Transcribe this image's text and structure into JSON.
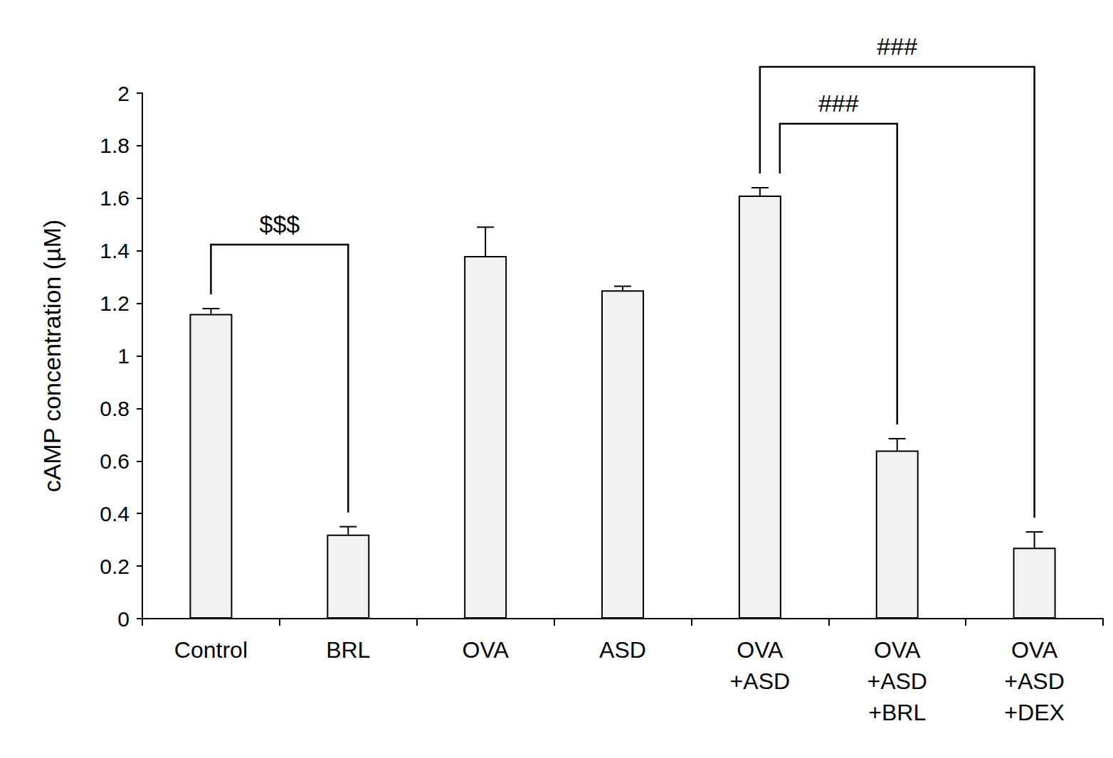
{
  "chart_data": {
    "type": "bar",
    "y_label": "cAMP concentration (µM)",
    "categories": [
      "Control",
      "BRL",
      "OVA",
      "ASD",
      "OVA\n+ASD",
      "OVA\n+ASD\n+BRL",
      "OVA\n+ASD\n+DEX"
    ],
    "values": [
      1.16,
      0.32,
      1.38,
      1.25,
      1.61,
      0.64,
      0.27
    ],
    "errors": [
      0.02,
      0.03,
      0.11,
      0.015,
      0.03,
      0.045,
      0.06
    ],
    "color": "#f2f2f2",
    "ylim": [
      0,
      2
    ],
    "yticks": [
      0,
      0.2,
      0.4,
      0.6,
      0.8,
      1,
      1.2,
      1.4,
      1.6,
      1.8,
      2
    ],
    "grid": false,
    "annotations": [
      {
        "from": "Control",
        "to": "BRL",
        "label": "$$$"
      },
      {
        "from": "OVA\n+ASD",
        "to": "OVA\n+ASD\n+BRL",
        "label": "###"
      },
      {
        "from": "OVA\n+ASD",
        "to": "OVA\n+ASD\n+DEX",
        "label": "###"
      }
    ]
  }
}
